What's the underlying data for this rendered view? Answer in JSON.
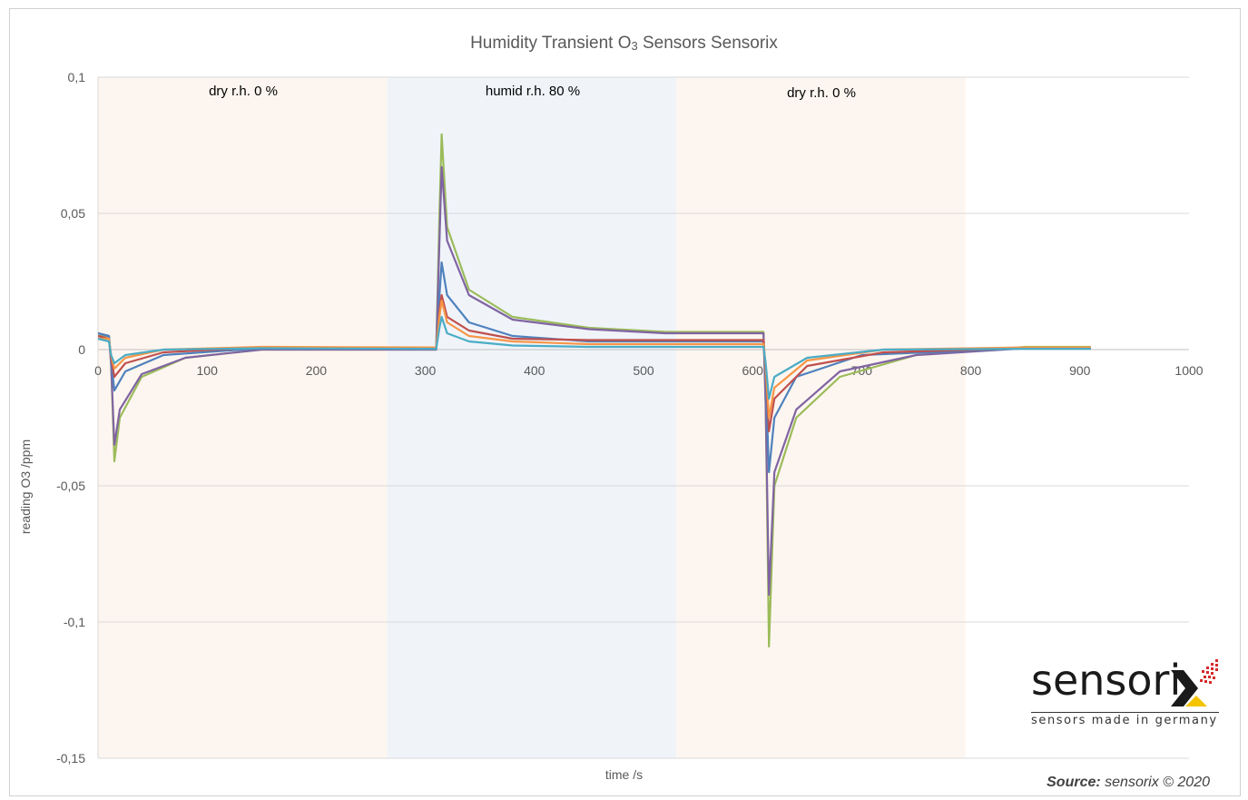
{
  "chart_data": {
    "type": "line",
    "title_main": "Humidity Transient O",
    "title_sub": "3",
    "title_rest": " Sensors Sensorix",
    "xlabel": "time /s",
    "ylabel": "reading O3 /ppm",
    "xlim": [
      0,
      1000
    ],
    "ylim": [
      -0.15,
      0.1
    ],
    "x_ticks": [
      "0",
      "100",
      "200",
      "300",
      "400",
      "500",
      "600",
      "700",
      "800",
      "900",
      "1000"
    ],
    "y_ticks": [
      "0,1",
      "0,05",
      "0",
      "-0,05",
      "-0,1",
      "-0,15"
    ],
    "y_tick_values": [
      0.1,
      0.05,
      0,
      -0.05,
      -0.1,
      -0.15
    ],
    "grid": true,
    "regions": [
      {
        "label": "dry r.h. 0 %",
        "x_start": 0,
        "x_end": 265,
        "color": "#fdf6f0"
      },
      {
        "label": "humid r.h. 80 %",
        "x_start": 265,
        "x_end": 530,
        "color": "#f0f4f9"
      },
      {
        "label": "dry r.h. 0 %",
        "x_start": 530,
        "x_end": 795,
        "color": "#fdf6f0"
      }
    ],
    "series": [
      {
        "color": "#9bbb59",
        "points": [
          [
            0,
            0.005
          ],
          [
            10,
            0.005
          ],
          [
            12,
            -0.005
          ],
          [
            15,
            -0.041
          ],
          [
            20,
            -0.025
          ],
          [
            40,
            -0.01
          ],
          [
            80,
            -0.003
          ],
          [
            150,
            0
          ],
          [
            310,
            0
          ],
          [
            313,
            0.05
          ],
          [
            315,
            0.079
          ],
          [
            320,
            0.045
          ],
          [
            340,
            0.022
          ],
          [
            380,
            0.012
          ],
          [
            450,
            0.008
          ],
          [
            520,
            0.0065
          ],
          [
            610,
            0.0065
          ],
          [
            612,
            -0.02
          ],
          [
            615,
            -0.109
          ],
          [
            620,
            -0.05
          ],
          [
            640,
            -0.025
          ],
          [
            680,
            -0.01
          ],
          [
            750,
            -0.002
          ],
          [
            850,
            0.001
          ],
          [
            910,
            0.001
          ]
        ]
      },
      {
        "color": "#8064a2",
        "points": [
          [
            0,
            0.006
          ],
          [
            10,
            0.005
          ],
          [
            12,
            -0.005
          ],
          [
            15,
            -0.035
          ],
          [
            20,
            -0.022
          ],
          [
            40,
            -0.009
          ],
          [
            80,
            -0.003
          ],
          [
            150,
            0
          ],
          [
            310,
            0
          ],
          [
            313,
            0.04
          ],
          [
            315,
            0.067
          ],
          [
            320,
            0.04
          ],
          [
            340,
            0.02
          ],
          [
            380,
            0.011
          ],
          [
            450,
            0.0075
          ],
          [
            520,
            0.006
          ],
          [
            610,
            0.006
          ],
          [
            612,
            -0.02
          ],
          [
            615,
            -0.09
          ],
          [
            620,
            -0.045
          ],
          [
            640,
            -0.022
          ],
          [
            680,
            -0.008
          ],
          [
            750,
            -0.002
          ],
          [
            850,
            0.0005
          ],
          [
            910,
            0.0005
          ]
        ]
      },
      {
        "color": "#4f81bd",
        "points": [
          [
            0,
            0.006
          ],
          [
            10,
            0.005
          ],
          [
            12,
            -0.004
          ],
          [
            15,
            -0.015
          ],
          [
            25,
            -0.008
          ],
          [
            60,
            -0.002
          ],
          [
            150,
            0.0005
          ],
          [
            310,
            0.0005
          ],
          [
            313,
            0.02
          ],
          [
            315,
            0.032
          ],
          [
            320,
            0.02
          ],
          [
            340,
            0.01
          ],
          [
            380,
            0.005
          ],
          [
            450,
            0.003
          ],
          [
            610,
            0.003
          ],
          [
            612,
            -0.01
          ],
          [
            615,
            -0.045
          ],
          [
            620,
            -0.025
          ],
          [
            640,
            -0.01
          ],
          [
            700,
            -0.002
          ],
          [
            850,
            0.0005
          ],
          [
            910,
            0.0005
          ]
        ]
      },
      {
        "color": "#c0504d",
        "points": [
          [
            0,
            0.005
          ],
          [
            10,
            0.004
          ],
          [
            12,
            -0.003
          ],
          [
            15,
            -0.01
          ],
          [
            25,
            -0.005
          ],
          [
            60,
            -0.001
          ],
          [
            150,
            0.0008
          ],
          [
            310,
            0.0005
          ],
          [
            313,
            0.015
          ],
          [
            315,
            0.02
          ],
          [
            320,
            0.012
          ],
          [
            340,
            0.007
          ],
          [
            380,
            0.004
          ],
          [
            450,
            0.0035
          ],
          [
            610,
            0.0035
          ],
          [
            612,
            -0.008
          ],
          [
            615,
            -0.03
          ],
          [
            620,
            -0.018
          ],
          [
            650,
            -0.006
          ],
          [
            720,
            -0.001
          ],
          [
            850,
            0.0005
          ],
          [
            910,
            0.0005
          ]
        ]
      },
      {
        "color": "#f79646",
        "points": [
          [
            0,
            0.004
          ],
          [
            10,
            0.004
          ],
          [
            12,
            -0.002
          ],
          [
            15,
            -0.007
          ],
          [
            25,
            -0.003
          ],
          [
            60,
            0
          ],
          [
            150,
            0.001
          ],
          [
            310,
            0.0008
          ],
          [
            313,
            0.012
          ],
          [
            315,
            0.018
          ],
          [
            320,
            0.01
          ],
          [
            340,
            0.005
          ],
          [
            380,
            0.003
          ],
          [
            450,
            0.002
          ],
          [
            610,
            0.002
          ],
          [
            612,
            -0.006
          ],
          [
            615,
            -0.025
          ],
          [
            620,
            -0.014
          ],
          [
            650,
            -0.004
          ],
          [
            720,
            0
          ],
          [
            850,
            0.0008
          ],
          [
            910,
            0.0008
          ]
        ]
      },
      {
        "color": "#4bacc6",
        "points": [
          [
            0,
            0.004
          ],
          [
            10,
            0.003
          ],
          [
            12,
            -0.002
          ],
          [
            15,
            -0.005
          ],
          [
            25,
            -0.002
          ],
          [
            60,
            0
          ],
          [
            150,
            0.0005
          ],
          [
            310,
            0.0003
          ],
          [
            313,
            0.008
          ],
          [
            315,
            0.012
          ],
          [
            320,
            0.006
          ],
          [
            340,
            0.003
          ],
          [
            380,
            0.0015
          ],
          [
            450,
            0.001
          ],
          [
            610,
            0.001
          ],
          [
            612,
            -0.005
          ],
          [
            615,
            -0.018
          ],
          [
            620,
            -0.01
          ],
          [
            650,
            -0.003
          ],
          [
            720,
            0
          ],
          [
            850,
            0.0003
          ],
          [
            910,
            0.0003
          ]
        ]
      }
    ]
  },
  "source": {
    "label": "Source:",
    "text": " sensorix © 2020"
  },
  "logo": {
    "word": "sensori",
    "tagline": "sensors made in germany"
  }
}
